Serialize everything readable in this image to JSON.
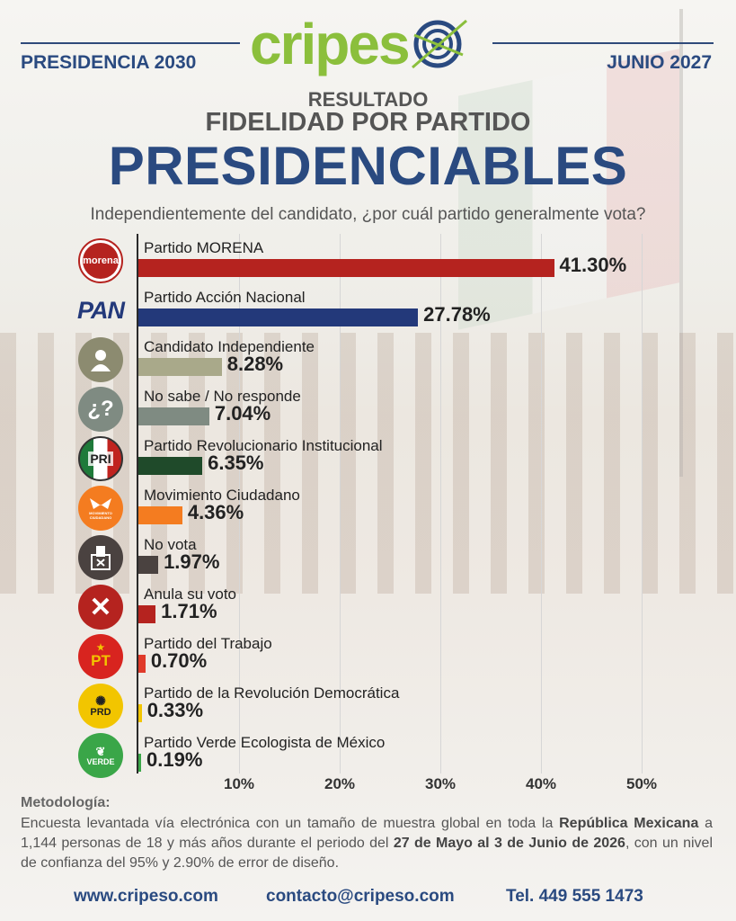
{
  "header": {
    "logo_text": "cripes",
    "left": "PRESIDENCIA 2030",
    "right": "JUNIO 2027"
  },
  "titles": {
    "line1": "RESULTADO",
    "line2": "FIDELIDAD POR PARTIDO",
    "line3": "PRESIDENCIABLES",
    "question": "Independientemente del candidato, ¿por cuál partido generalmente vota?"
  },
  "chart_data": {
    "type": "bar",
    "orientation": "horizontal",
    "categories": [
      "Partido MORENA",
      "Partido Acción Nacional",
      "Candidato Independiente",
      "No sabe / No responde",
      "Partido Revolucionario Institucional",
      "Movimiento Ciudadano",
      "No vota",
      "Anula su voto",
      "Partido del Trabajo",
      "Partido de la Revolución Democrática",
      "Partido Verde Ecologista de México"
    ],
    "values": [
      41.3,
      27.78,
      8.28,
      7.04,
      6.35,
      4.36,
      1.97,
      1.71,
      0.7,
      0.33,
      0.19
    ],
    "value_labels": [
      "41.30%",
      "27.78%",
      "8.28%",
      "7.04%",
      "6.35%",
      "4.36%",
      "1.97%",
      "1.71%",
      "0.70%",
      "0.33%",
      "0.19%"
    ],
    "colors": [
      "#b5231f",
      "#23397a",
      "#a9a98a",
      "#7f8b82",
      "#1f4a2a",
      "#f47c20",
      "#4a4240",
      "#b5231f",
      "#e03a2a",
      "#f2c500",
      "#3aa648"
    ],
    "icons": [
      "morena-logo",
      "pan-logo",
      "person-icon",
      "question-icon",
      "pri-logo",
      "mc-logo",
      "ballot-box-icon",
      "x-icon",
      "pt-logo",
      "prd-logo",
      "verde-logo"
    ],
    "xlim": [
      0,
      55
    ],
    "xticks": [
      10,
      20,
      30,
      40,
      50
    ],
    "xtick_labels": [
      "10%",
      "20%",
      "30%",
      "40%",
      "50%"
    ],
    "grid": true
  },
  "icon_texts": {
    "morena": "morena",
    "pan": "PAN",
    "pri": "PRI",
    "mc": "MOVIMIENTO CIUDADANO",
    "pt": "PT",
    "prd": "PRD",
    "verde": "VERDE"
  },
  "methodology": {
    "title": "Metodología:",
    "t1": "Encuesta levantada vía electrónica con un tamaño de muestra global en toda la ",
    "b1": "República Mexicana",
    "t2": " a 1,144 personas de 18 y más años durante el periodo del ",
    "b2": "27 de Mayo al 3 de Junio de 2026",
    "t3": ", con un nivel de confianza del 95% y 2.90% de error de diseño."
  },
  "footer": {
    "web": "www.cripeso.com",
    "email": "contacto@cripeso.com",
    "phone": "Tel. 449 555 1473"
  }
}
